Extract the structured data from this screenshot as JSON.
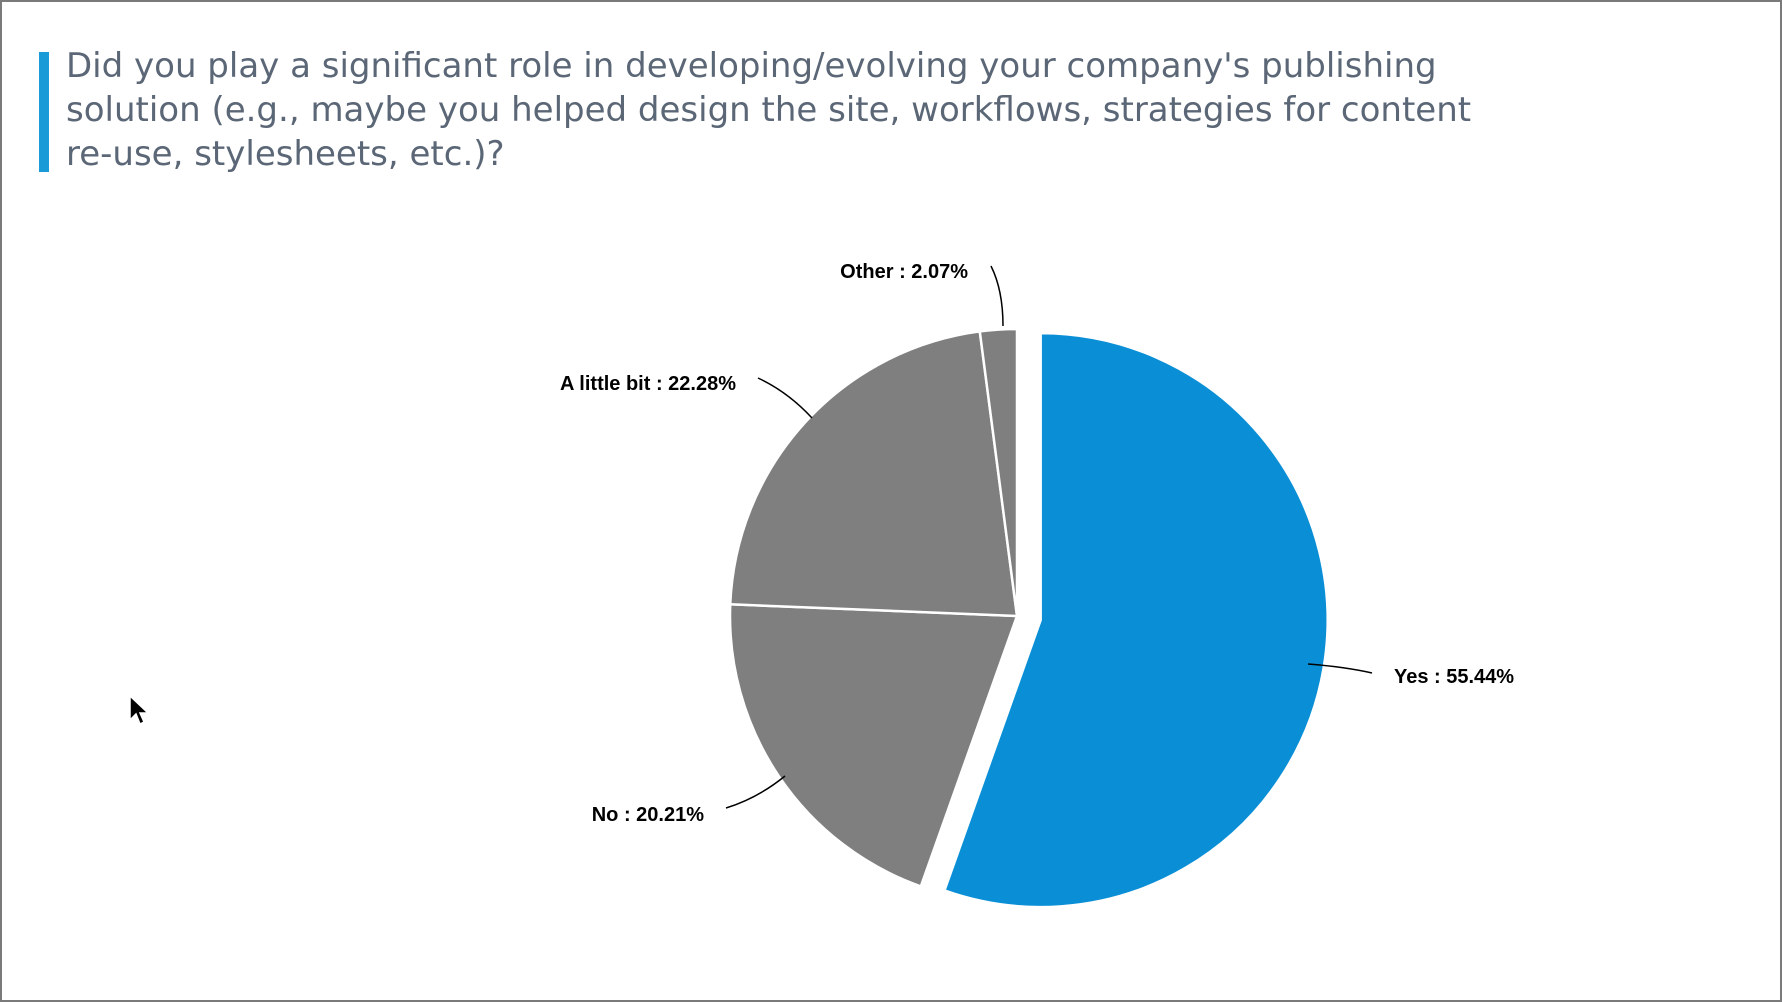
{
  "title": "Did you play a significant role in developing/evolving your company's publishing solution (e.g., maybe you helped design the site,  workflows, strategies for content re-use, stylesheets, etc.)?",
  "colors": {
    "accent": "#1a9ad6",
    "highlight_slice": "#0a8fd6",
    "other_slices": "#7f7f7f",
    "title_text": "#5b6776"
  },
  "chart_data": {
    "type": "pie",
    "title": "Did you play a significant role in developing/evolving your company's publishing solution (e.g., maybe you helped design the site,  workflows, strategies for content re-use, stylesheets, etc.)?",
    "slices": [
      {
        "label": "Yes",
        "value": 55.44,
        "display": "Yes : 55.44%",
        "color": "#0a8fd6",
        "exploded": true
      },
      {
        "label": "No",
        "value": 20.21,
        "display": "No : 20.21%",
        "color": "#7f7f7f",
        "exploded": false
      },
      {
        "label": "A little bit",
        "value": 22.28,
        "display": "A little bit : 22.28%",
        "color": "#7f7f7f",
        "exploded": false
      },
      {
        "label": "Other",
        "value": 2.07,
        "display": "Other : 2.07%",
        "color": "#7f7f7f",
        "exploded": false
      }
    ]
  }
}
